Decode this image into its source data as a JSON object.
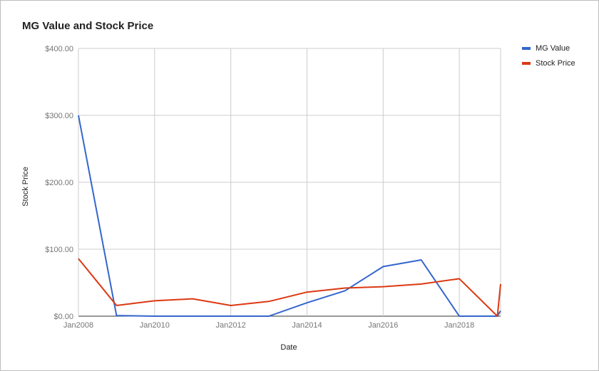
{
  "chart_data": {
    "type": "line",
    "title": "MG Value and Stock Price",
    "xlabel": "Date",
    "ylabel": "Stock Price",
    "x_ticks": [
      "Jan2008",
      "Jan2010",
      "Jan2012",
      "Jan2014",
      "Jan2016",
      "Jan2018"
    ],
    "y_ticks": [
      "$400.00",
      "$300.00",
      "$200.00",
      "$100.00",
      "$0.00"
    ],
    "ylim": [
      0,
      400
    ],
    "xlim": [
      "2008-01",
      "2019-02"
    ],
    "grid": true,
    "legend": "right",
    "x": [
      "2008-01",
      "2009-01",
      "2010-01",
      "2011-01",
      "2012-01",
      "2013-01",
      "2014-01",
      "2015-01",
      "2016-01",
      "2017-01",
      "2018-01",
      "2019-01",
      "2019-02"
    ],
    "series": [
      {
        "name": "MG Value",
        "color": "#3366cc",
        "values": [
          300,
          1,
          0,
          0,
          0,
          0,
          20,
          38,
          74,
          84,
          0,
          0,
          8
        ]
      },
      {
        "name": "Stock Price",
        "color": "#dc3912",
        "values": [
          86,
          16,
          23,
          26,
          16,
          22,
          36,
          42,
          44,
          48,
          56,
          0,
          48
        ]
      }
    ]
  }
}
